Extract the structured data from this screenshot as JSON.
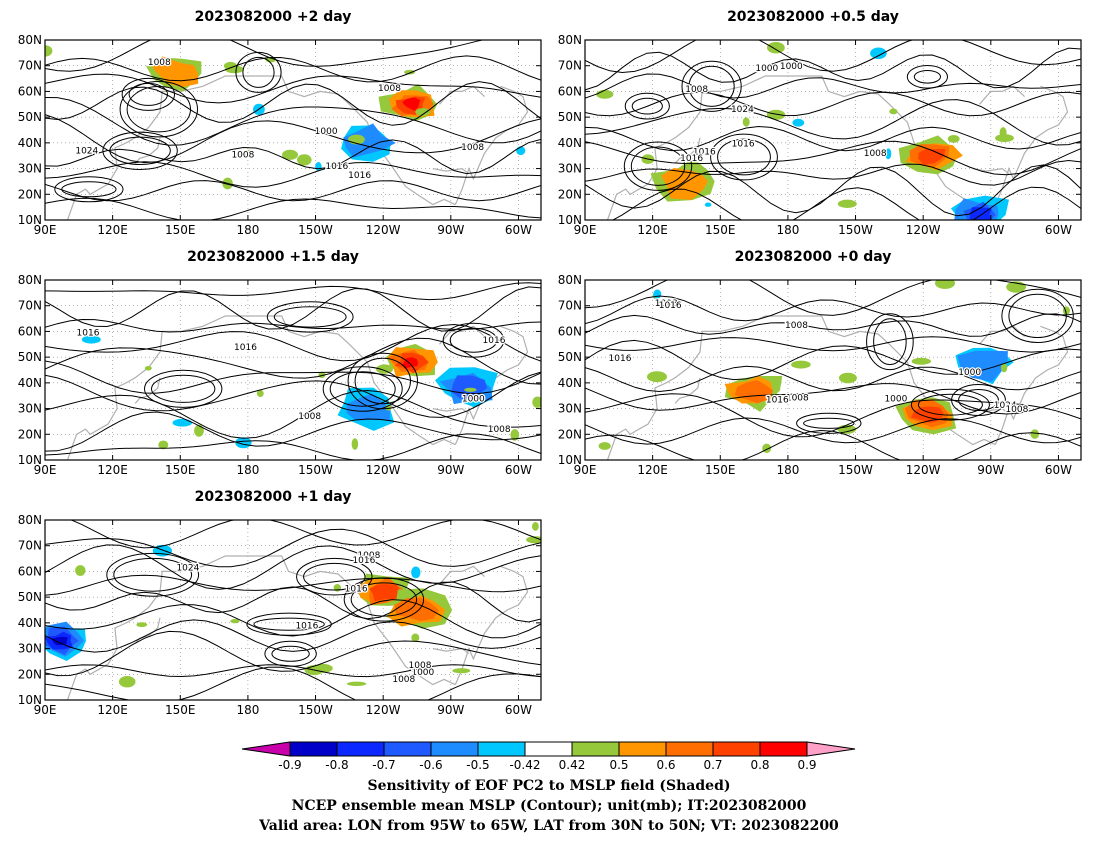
{
  "chart_data": [
    {
      "type": "heatmap",
      "title": "2023082000 +2 day",
      "xticks": [
        "90E",
        "120E",
        "150E",
        "180",
        "150W",
        "120W",
        "90W",
        "60W"
      ],
      "yticks": [
        "10N",
        "20N",
        "30N",
        "40N",
        "50N",
        "60N",
        "70N",
        "80N"
      ],
      "contour_labels": [
        "1008",
        "1016",
        "1008",
        "1024",
        "1000",
        "1016",
        "1008",
        "1008"
      ],
      "shading_features": [
        {
          "kind": "positive",
          "lon": 253,
          "lat": 55,
          "peak": 0.9
        },
        {
          "kind": "negative",
          "lon": 233,
          "lat": 40,
          "peak": -0.6
        },
        {
          "kind": "positive",
          "lon": 149,
          "lat": 67,
          "peak": 0.6
        }
      ]
    },
    {
      "type": "heatmap",
      "title": "2023082000 +0.5 day",
      "xticks": [
        "90E",
        "120E",
        "150E",
        "180",
        "150W",
        "120W",
        "90W",
        "60W"
      ],
      "yticks": [
        "10N",
        "20N",
        "30N",
        "40N",
        "50N",
        "60N",
        "70N",
        "80N"
      ],
      "contour_labels": [
        "1008",
        "1000",
        "1008",
        "1000",
        "1016",
        "1024",
        "1016",
        "1016"
      ],
      "shading_features": [
        {
          "kind": "positive",
          "lon": 244,
          "lat": 35,
          "peak": 0.8
        },
        {
          "kind": "negative",
          "lon": 265,
          "lat": 12,
          "peak": -0.8
        },
        {
          "kind": "positive",
          "lon": 135,
          "lat": 25,
          "peak": 0.6
        }
      ]
    },
    {
      "type": "heatmap",
      "title": "2023082000 +1.5 day",
      "xticks": [
        "90E",
        "120E",
        "150E",
        "180",
        "150W",
        "120W",
        "90W",
        "60W"
      ],
      "yticks": [
        "10N",
        "20N",
        "30N",
        "40N",
        "50N",
        "60N",
        "70N",
        "80N"
      ],
      "contour_labels": [
        "1008",
        "1016",
        "1016",
        "1000",
        "1016",
        "1008"
      ],
      "shading_features": [
        {
          "kind": "positive",
          "lon": 252,
          "lat": 48,
          "peak": 0.9
        },
        {
          "kind": "negative",
          "lon": 233,
          "lat": 30,
          "peak": -0.6
        },
        {
          "kind": "negative",
          "lon": 278,
          "lat": 38,
          "peak": -0.7
        }
      ]
    },
    {
      "type": "heatmap",
      "title": "2023082000 +0 day",
      "xticks": [
        "90E",
        "120E",
        "150E",
        "180",
        "150W",
        "120W",
        "90W",
        "60W"
      ],
      "yticks": [
        "10N",
        "20N",
        "30N",
        "40N",
        "50N",
        "60N",
        "70N",
        "80N"
      ],
      "contour_labels": [
        "1008",
        "1000",
        "1008",
        "1016",
        "1024",
        "1000",
        "1008",
        "1016",
        "1016",
        "1008"
      ],
      "shading_features": [
        {
          "kind": "positive",
          "lon": 242,
          "lat": 28,
          "peak": 0.8
        },
        {
          "kind": "positive",
          "lon": 165,
          "lat": 37,
          "peak": 0.7
        },
        {
          "kind": "negative",
          "lon": 268,
          "lat": 48,
          "peak": -0.6
        }
      ]
    },
    {
      "type": "heatmap",
      "title": "2023082000 +1 day",
      "xticks": [
        "90E",
        "120E",
        "150E",
        "180",
        "150W",
        "120W",
        "90W",
        "60W"
      ],
      "yticks": [
        "10N",
        "20N",
        "30N",
        "40N",
        "50N",
        "60N",
        "70N",
        "80N"
      ],
      "contour_labels": [
        "1016",
        "1000",
        "1016",
        "1008",
        "1016",
        "1008",
        "1024",
        "1008"
      ],
      "shading_features": [
        {
          "kind": "negative",
          "lon": 97,
          "lat": 33,
          "peak": -0.9
        },
        {
          "kind": "positive",
          "lon": 240,
          "lat": 52,
          "peak": 0.8
        },
        {
          "kind": "positive",
          "lon": 255,
          "lat": 45,
          "peak": 0.7
        }
      ]
    }
  ],
  "colorbar": {
    "ticks": [
      "-0.9",
      "-0.8",
      "-0.7",
      "-0.6",
      "-0.5",
      "-0.42",
      "0.42",
      "0.5",
      "0.6",
      "0.7",
      "0.8",
      "0.9"
    ],
    "colors": [
      "#0000c8",
      "#0a28ff",
      "#1e5aff",
      "#1e8cff",
      "#00c8ff",
      "#ffffff",
      "#96c83c",
      "#ff9600",
      "#ff6e00",
      "#ff4100",
      "#ff0000"
    ],
    "low_end_color": "#c800aa",
    "high_end_color": "#ffa0c8"
  },
  "colors": {
    "contour": "#000000",
    "coast": "#b0b0b0",
    "grid": "#888888"
  },
  "caption": {
    "line1": "Sensitivity of EOF PC2 to MSLP field (Shaded)",
    "line2": "NCEP ensemble mean MSLP (Contour); unit(mb); IT:2023082000",
    "line3": "Valid area: LON from 95W to 65W, LAT from 30N to 50N; VT: 2023082200"
  }
}
